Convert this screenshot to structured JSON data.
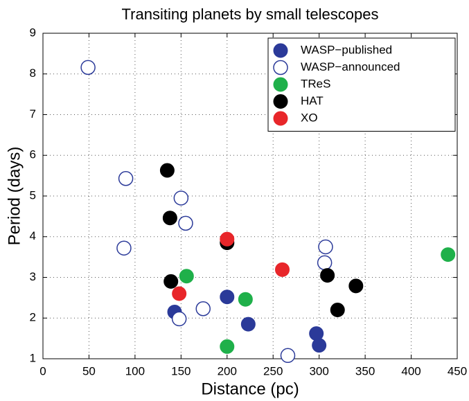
{
  "chart_data": {
    "type": "scatter",
    "title": "Transiting planets by small telescopes",
    "x_label": "Distance (pc)",
    "y_label": "Period (days)",
    "xlim": [
      0,
      450
    ],
    "ylim": [
      1,
      9
    ],
    "xticks": [
      0,
      50,
      100,
      150,
      200,
      250,
      300,
      350,
      400,
      450
    ],
    "yticks": [
      1,
      2,
      3,
      4,
      5,
      6,
      7,
      8,
      9
    ],
    "grid": true,
    "legend": "upper right",
    "series": [
      {
        "name": "WASP−published",
        "color": "#2b3a99",
        "filled": true,
        "x": [
          143,
          200,
          223,
          297,
          300
        ],
        "y": [
          2.15,
          2.52,
          1.85,
          1.62,
          1.33
        ]
      },
      {
        "name": "WASP−announced",
        "color": "#2b3a99",
        "filled": false,
        "x": [
          49,
          90,
          88,
          150,
          155,
          148,
          174,
          307,
          306,
          266
        ],
        "y": [
          8.16,
          5.43,
          3.72,
          4.95,
          4.33,
          1.98,
          2.23,
          3.75,
          3.36,
          1.08
        ]
      },
      {
        "name": "TReS",
        "color": "#1fb04a",
        "filled": true,
        "x": [
          156,
          220,
          200,
          440
        ],
        "y": [
          3.03,
          2.46,
          1.3,
          3.56
        ]
      },
      {
        "name": "HAT",
        "color": "#000000",
        "filled": true,
        "x": [
          135,
          138,
          139,
          200,
          309,
          320,
          340
        ],
        "y": [
          5.63,
          4.46,
          2.9,
          3.85,
          3.05,
          2.2,
          2.79
        ]
      },
      {
        "name": "XO",
        "color": "#e8262a",
        "filled": true,
        "x": [
          148,
          200,
          260
        ],
        "y": [
          2.6,
          3.94,
          3.19
        ]
      }
    ]
  }
}
